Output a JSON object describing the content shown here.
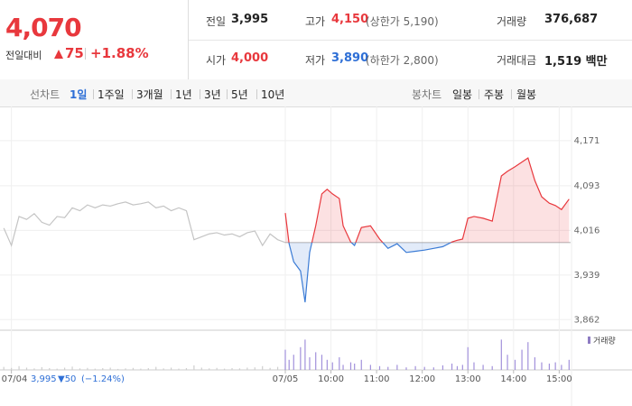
{
  "header": {
    "price": "4,070",
    "change_label": "전일대비",
    "change": "75",
    "change_pct": "+1.88%",
    "stats": [
      {
        "label": "전일",
        "value": "3,995"
      },
      {
        "label": "고가",
        "value": "4,150",
        "note": "(상한가 5,190)"
      },
      {
        "label": "거래량",
        "value": "376,687"
      },
      {
        "label": "시가",
        "value": "4,000"
      },
      {
        "label": "저가",
        "value": "3,890",
        "note": "(하한가 2,800)"
      },
      {
        "label": "거래대금",
        "value": "1,519 백만"
      }
    ]
  },
  "tabs": {
    "line_label": "선차트",
    "line": [
      "1일",
      "1주일",
      "3개월",
      "1년",
      "3년",
      "5년",
      "10년"
    ],
    "candle_label": "봉차트",
    "candle": [
      "일봉",
      "주봉",
      "월봉"
    ]
  },
  "chart_data": {
    "type": "line",
    "xlim": [
      15,
      765
    ],
    "ylim": [
      3850,
      4219
    ],
    "xticks": [
      {
        "value": 30,
        "label": "07/04"
      },
      {
        "value": 390,
        "label": "07/05"
      },
      {
        "value": 450,
        "label": "10:00"
      },
      {
        "value": 510,
        "label": "11:00"
      },
      {
        "value": 570,
        "label": "12:00"
      },
      {
        "value": 630,
        "label": "13:00"
      },
      {
        "value": 690,
        "label": "14:00"
      },
      {
        "value": 750,
        "label": "15:00"
      }
    ],
    "yticks": [
      {
        "value": 3862,
        "label": "3,862"
      },
      {
        "value": 3939,
        "label": "3,939"
      },
      {
        "value": 4016,
        "label": "4,016"
      },
      {
        "value": 4093,
        "label": "4,093"
      },
      {
        "value": 4171,
        "label": "4,171"
      }
    ],
    "baseline": 3995,
    "grid": true,
    "footer": {
      "close": "3,995",
      "change": "▼50",
      "pct": "(−1.24%)"
    },
    "volume_label": "거래량",
    "volume_legend_color": "#8e7cc3",
    "volume_ylim": [
      0,
      15000
    ],
    "series": [
      {
        "color": "#c4c4c4",
        "volume_color": "#cfcfcf",
        "x": [
          20,
          30,
          40,
          50,
          60,
          70,
          80,
          90,
          100,
          110,
          120,
          130,
          140,
          150,
          160,
          170,
          180,
          190,
          200,
          210,
          220,
          230,
          240,
          250,
          260,
          270,
          280,
          290,
          300,
          310,
          320,
          330,
          340,
          350,
          360,
          370,
          380,
          390
        ],
        "values": [
          4020,
          3990,
          4040,
          4035,
          4045,
          4030,
          4025,
          4040,
          4038,
          4055,
          4050,
          4060,
          4055,
          4060,
          4058,
          4062,
          4065,
          4060,
          4062,
          4065,
          4055,
          4058,
          4050,
          4055,
          4050,
          4000,
          4005,
          4010,
          4012,
          4008,
          4010,
          4005,
          4012,
          4015,
          3990,
          4010,
          4000,
          3995
        ],
        "volume": [
          1200,
          800,
          1500,
          900,
          600,
          1100,
          700,
          500,
          900,
          1300,
          600,
          800,
          500,
          700,
          900,
          400,
          600,
          800,
          500,
          700,
          1200,
          600,
          900,
          500,
          700,
          1800,
          900,
          600,
          800,
          500,
          700,
          600,
          900,
          1000,
          1500,
          800,
          1200,
          2500
        ]
      },
      {
        "color": "#e8383d",
        "down_color": "#3a7bd5",
        "volume_color": "#a291db",
        "x": [
          390,
          395,
          401,
          410,
          416,
          422,
          430,
          438,
          445,
          452,
          461,
          466,
          476,
          481,
          490,
          502,
          514,
          525,
          537,
          549,
          561,
          573,
          585,
          597,
          609,
          616,
          623,
          630,
          638,
          650,
          662,
          674,
          682,
          692,
          701,
          709,
          718,
          727,
          737,
          745,
          753,
          763
        ],
        "values": [
          4046,
          3993,
          3962,
          3946,
          3892,
          3978,
          4024,
          4079,
          4087,
          4079,
          4071,
          4024,
          3996,
          3990,
          4021,
          4024,
          4001,
          3985,
          3993,
          3978,
          3980,
          3982,
          3985,
          3988,
          3996,
          3999,
          4001,
          4037,
          4040,
          4037,
          4032,
          4110,
          4118,
          4126,
          4134,
          4141,
          4102,
          4074,
          4063,
          4059,
          4052,
          4070
        ],
        "volume": [
          8000,
          4000,
          6000,
          9000,
          12000,
          5000,
          7000,
          6000,
          4000,
          3000,
          5000,
          2000,
          3000,
          2500,
          4000,
          2000,
          1500,
          1200,
          2000,
          1000,
          1500,
          1200,
          1000,
          1800,
          2500,
          1500,
          2000,
          9000,
          3000,
          2000,
          1500,
          12000,
          6000,
          4000,
          8000,
          11000,
          5000,
          3000,
          2500,
          3000,
          2000,
          4000
        ]
      }
    ]
  }
}
